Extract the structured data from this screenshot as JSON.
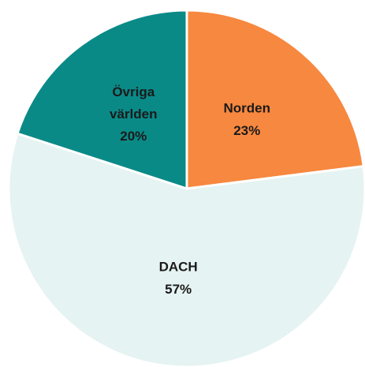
{
  "chart_data": {
    "type": "pie",
    "categories": [
      "Norden",
      "DACH",
      "Övriga världen"
    ],
    "values": [
      23,
      57,
      20
    ],
    "value_labels": [
      "23%",
      "57%",
      "20%"
    ],
    "colors": [
      "#f7883f",
      "#e5f3f2",
      "#0a8a87"
    ]
  }
}
